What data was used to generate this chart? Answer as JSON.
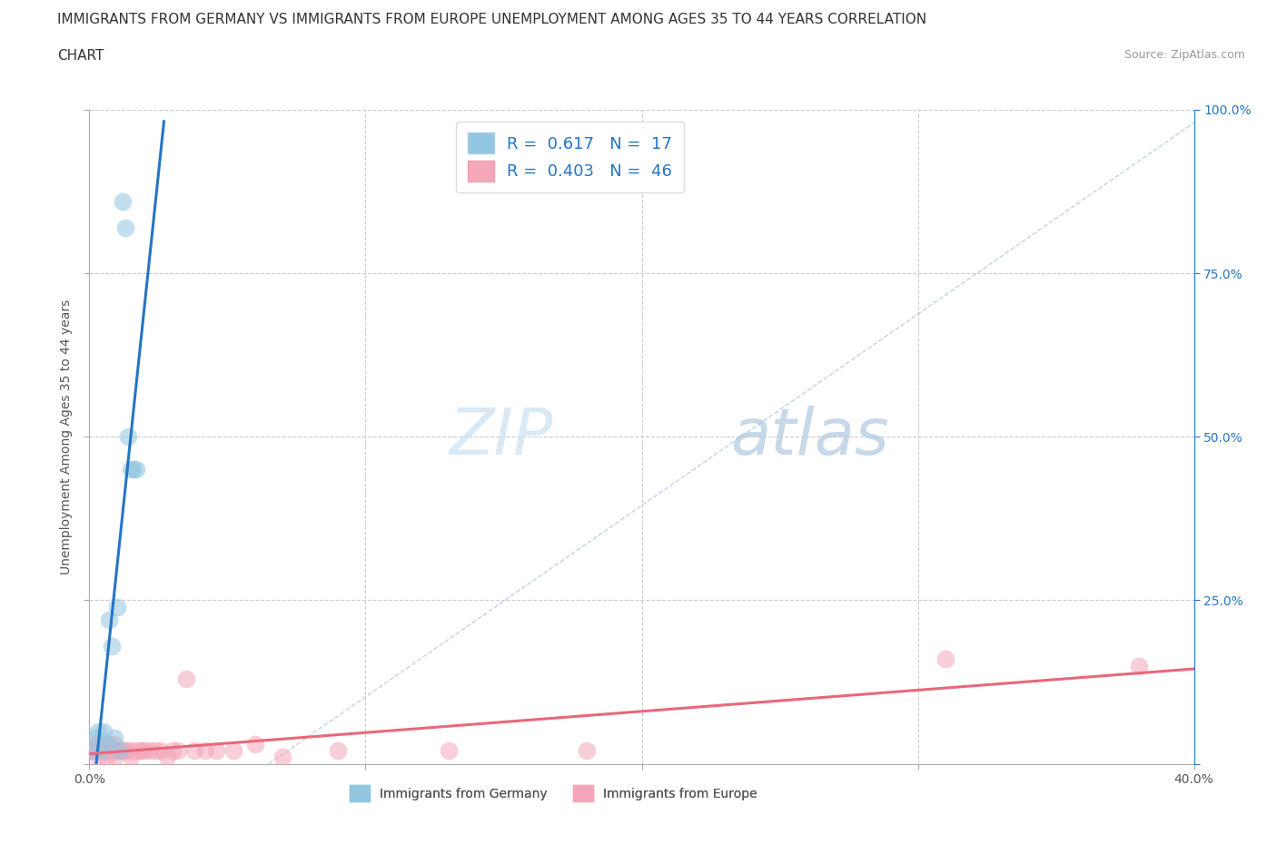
{
  "title_line1": "IMMIGRANTS FROM GERMANY VS IMMIGRANTS FROM EUROPE UNEMPLOYMENT AMONG AGES 35 TO 44 YEARS CORRELATION",
  "title_line2": "CHART",
  "source_text": "Source: ZipAtlas.com",
  "ylabel": "Unemployment Among Ages 35 to 44 years",
  "xlabel_germany": "Immigrants from Germany",
  "xlabel_europe": "Immigrants from Europe",
  "watermark_zip": "ZIP",
  "watermark_atlas": "atlas",
  "germany_x": [
    0.001,
    0.002,
    0.003,
    0.004,
    0.005,
    0.006,
    0.007,
    0.008,
    0.009,
    0.01,
    0.011,
    0.012,
    0.013,
    0.014,
    0.015,
    0.016,
    0.017
  ],
  "germany_y": [
    0.02,
    0.04,
    0.05,
    0.02,
    0.05,
    0.03,
    0.22,
    0.18,
    0.04,
    0.24,
    0.02,
    0.86,
    0.82,
    0.5,
    0.45,
    0.45,
    0.45
  ],
  "europe_x": [
    0.001,
    0.002,
    0.002,
    0.003,
    0.003,
    0.004,
    0.004,
    0.005,
    0.005,
    0.006,
    0.006,
    0.007,
    0.007,
    0.008,
    0.008,
    0.009,
    0.009,
    0.01,
    0.01,
    0.011,
    0.012,
    0.013,
    0.014,
    0.015,
    0.016,
    0.018,
    0.019,
    0.02,
    0.022,
    0.024,
    0.026,
    0.028,
    0.03,
    0.032,
    0.035,
    0.038,
    0.042,
    0.046,
    0.052,
    0.06,
    0.07,
    0.09,
    0.13,
    0.18,
    0.31,
    0.38
  ],
  "europe_y": [
    0.02,
    0.02,
    0.03,
    0.01,
    0.03,
    0.02,
    0.02,
    0.02,
    0.03,
    0.01,
    0.02,
    0.02,
    0.03,
    0.02,
    0.02,
    0.01,
    0.03,
    0.02,
    0.02,
    0.02,
    0.02,
    0.02,
    0.02,
    0.01,
    0.02,
    0.02,
    0.02,
    0.02,
    0.02,
    0.02,
    0.02,
    0.01,
    0.02,
    0.02,
    0.13,
    0.02,
    0.02,
    0.02,
    0.02,
    0.03,
    0.01,
    0.02,
    0.02,
    0.02,
    0.16,
    0.15
  ],
  "germany_R": 0.617,
  "germany_N": 17,
  "europe_R": 0.403,
  "europe_N": 46,
  "germany_color": "#93c6e0",
  "europe_color": "#f4a7b9",
  "germany_line_color": "#2575c4",
  "europe_line_color": "#e8687a",
  "diagonal_color": "#b0c8e0",
  "xlim": [
    0.0,
    0.4
  ],
  "ylim": [
    0.0,
    1.0
  ],
  "title_fontsize": 11,
  "axis_label_fontsize": 10,
  "tick_fontsize": 10,
  "legend_fontsize": 13,
  "source_fontsize": 9,
  "watermark_fontsize": 52
}
